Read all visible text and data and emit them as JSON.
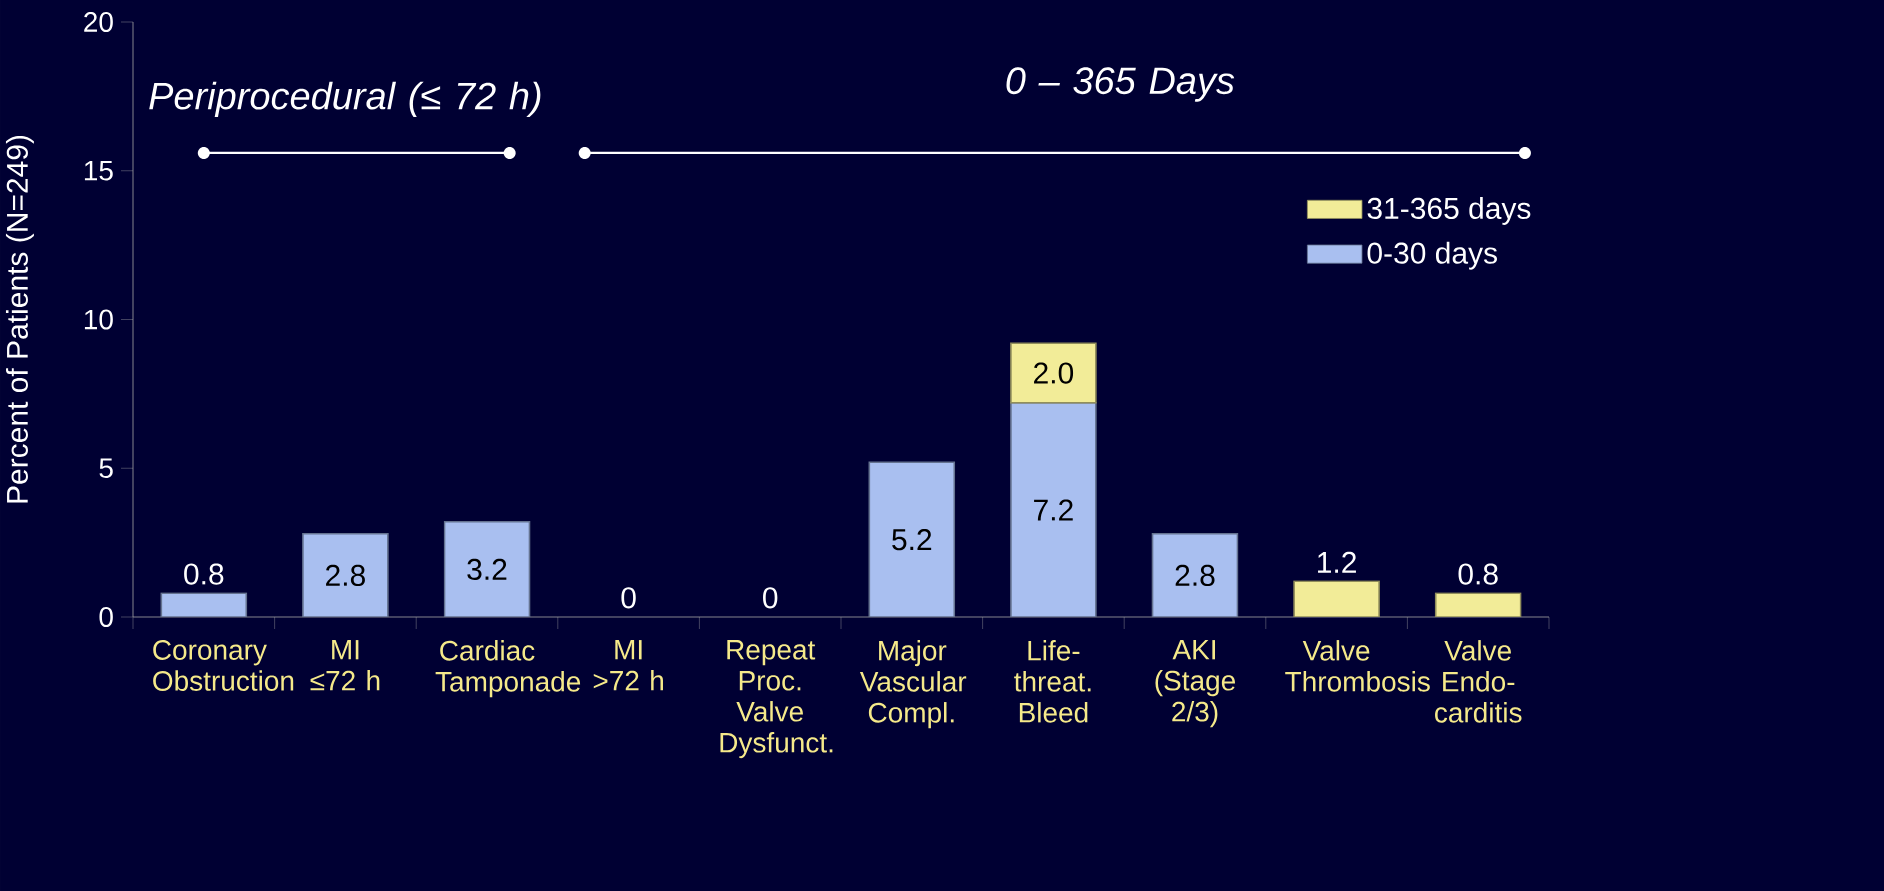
{
  "chart_data": {
    "type": "bar",
    "stacked": true,
    "ylabel": "Percent of Patients (N=249)",
    "categories": [
      "Coronary Obstruction",
      "MI ≤72 h",
      "Cardiac Tamponade",
      "MI >72 h",
      "Repeat Proc. Valve Dysfunct.",
      "Major Vascular Compl.",
      "Life-threat. Bleed",
      "AKI (Stage 2/3)",
      "Valve Thrombosis",
      "Valve Endo-carditis"
    ],
    "series": [
      {
        "name": "0-30 days",
        "color": "#a9bff0",
        "values": [
          0.8,
          2.8,
          3.2,
          0,
          0,
          5.2,
          7.2,
          2.8,
          null,
          null
        ],
        "value_labels": [
          "0.8",
          "2.8",
          "3.2",
          "0",
          "0",
          "5.2",
          "7.2",
          "2.8",
          null,
          null
        ]
      },
      {
        "name": "31-365 days",
        "color": "#f2ec98",
        "values": [
          null,
          null,
          null,
          null,
          null,
          null,
          2.0,
          null,
          1.2,
          0.8
        ],
        "value_labels": [
          null,
          null,
          null,
          null,
          null,
          null,
          "2.0",
          null,
          "1.2",
          "0.8"
        ]
      }
    ],
    "ylim": [
      0,
      20
    ],
    "yticks": [
      0,
      5,
      10,
      15,
      20
    ],
    "grid": false,
    "legend": "top right",
    "annotations": [
      "Periprocedural (≤ 72 h)",
      "0 – 365 Days"
    ]
  }
}
